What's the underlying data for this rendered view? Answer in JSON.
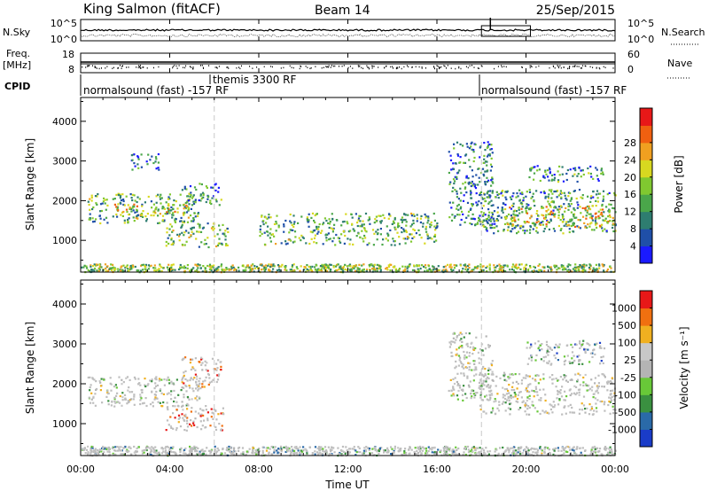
{
  "header": {
    "title": "King Salmon (fitACF)",
    "beam": "Beam 14",
    "date": "25/Sep/2015"
  },
  "noise_panel": {
    "left_label": "N.Sky",
    "right_label": "N.Search",
    "ticks_left": [
      "10^5",
      "10^0"
    ],
    "ticks_right": [
      "10^5",
      "10^0"
    ]
  },
  "freq_panel": {
    "left_label": "Freq.",
    "left_unit": "[MHz]",
    "right_label": "Nave",
    "ticks_left": [
      "18",
      "8"
    ],
    "ticks_right": [
      "60",
      "0"
    ]
  },
  "cpid_panel": {
    "label": "CPID",
    "segments": [
      {
        "text": "normalsound (fast) -157 RF",
        "start_hour": 0
      },
      {
        "text": "themis 3300 RF",
        "start_hour": 6
      },
      {
        "text": "normalsound (fast) -157 RF",
        "start_hour": 18
      }
    ]
  },
  "chart_data": [
    {
      "type": "heatmap",
      "quantity": "Power",
      "ylabel": "Slant Range [km]",
      "yticks": [
        1000,
        2000,
        3000,
        4000
      ],
      "ylim": [
        200,
        4600
      ],
      "x_hours_range": [
        0,
        24
      ],
      "colorbar_label": "Power [dB]",
      "colorbar_ticks": [
        "4",
        "8",
        "12",
        "16",
        "20",
        "24",
        "28"
      ],
      "colorbar_colors": [
        "#1a1aff",
        "#1f4fa8",
        "#2e7d70",
        "#4aa64a",
        "#80c830",
        "#d8d820",
        "#f0a020",
        "#f06010",
        "#e81818"
      ],
      "echo_regions": [
        {
          "t0": 0.3,
          "t1": 5.3,
          "r0": 1450,
          "r1": 2200,
          "level": 0.4
        },
        {
          "t0": 1.5,
          "t1": 4.8,
          "r0": 1650,
          "r1": 1950,
          "level": 0.6
        },
        {
          "t0": 4.5,
          "t1": 6.3,
          "r0": 1900,
          "r1": 2450,
          "level": 0.3
        },
        {
          "t0": 3.8,
          "t1": 6.6,
          "r0": 850,
          "r1": 1450,
          "level": 0.45
        },
        {
          "t0": 2.2,
          "t1": 3.5,
          "r0": 2800,
          "r1": 3200,
          "level": 0.25
        },
        {
          "t0": 16.5,
          "t1": 18.5,
          "r0": 1400,
          "r1": 3500,
          "level": 0.25
        },
        {
          "t0": 17.9,
          "t1": 24.0,
          "r0": 1200,
          "r1": 2300,
          "level": 0.35
        },
        {
          "t0": 19.0,
          "t1": 24.0,
          "r0": 1350,
          "r1": 1900,
          "level": 0.6
        },
        {
          "t0": 20.0,
          "t1": 23.5,
          "r0": 2500,
          "r1": 2900,
          "level": 0.3
        },
        {
          "t0": 0.0,
          "t1": 24.0,
          "r0": 220,
          "r1": 420,
          "level": 0.5
        },
        {
          "t0": 8.0,
          "t1": 16.0,
          "r0": 900,
          "r1": 1700,
          "level": 0.4
        }
      ]
    },
    {
      "type": "heatmap",
      "quantity": "Velocity",
      "ylabel": "Slant Range [km]",
      "yticks": [
        1000,
        2000,
        3000,
        4000
      ],
      "ylim": [
        200,
        4600
      ],
      "x_hours_range": [
        0,
        24
      ],
      "colorbar_label": "Velocity [m s⁻¹]",
      "colorbar_ticks": [
        "1000",
        "500",
        "100",
        "25",
        "-25",
        "-100",
        "-500",
        "-1000"
      ],
      "colorbar_colors": [
        "#1a3cc8",
        "#2a6aa8",
        "#3a9040",
        "#68c838",
        "#b4b4b4",
        "#c8c8c8",
        "#f0b020",
        "#f07010",
        "#e81818"
      ],
      "ground_scatter_color": "#bebebe",
      "echo_regions": [
        {
          "t0": 0.3,
          "t1": 5.3,
          "r0": 1450,
          "r1": 2200,
          "level": 0.5
        },
        {
          "t0": 3.8,
          "t1": 6.4,
          "r0": 850,
          "r1": 1500,
          "level": 0.8
        },
        {
          "t0": 4.5,
          "t1": 6.3,
          "r0": 1900,
          "r1": 2700,
          "level": 0.75
        },
        {
          "t0": 16.5,
          "t1": 18.5,
          "r0": 1600,
          "r1": 3300,
          "level": 0.5
        },
        {
          "t0": 17.9,
          "t1": 24.0,
          "r0": 1250,
          "r1": 2300,
          "level": 0.5
        },
        {
          "t0": 20.0,
          "t1": 23.5,
          "r0": 2500,
          "r1": 3100,
          "level": 0.3
        },
        {
          "t0": 0.0,
          "t1": 24.0,
          "r0": 220,
          "r1": 450,
          "level": 0.4
        }
      ]
    }
  ],
  "x_axis": {
    "ticks": [
      "00:00",
      "04:00",
      "08:00",
      "12:00",
      "16:00",
      "20:00",
      "00:00"
    ],
    "label": "Time UT"
  }
}
